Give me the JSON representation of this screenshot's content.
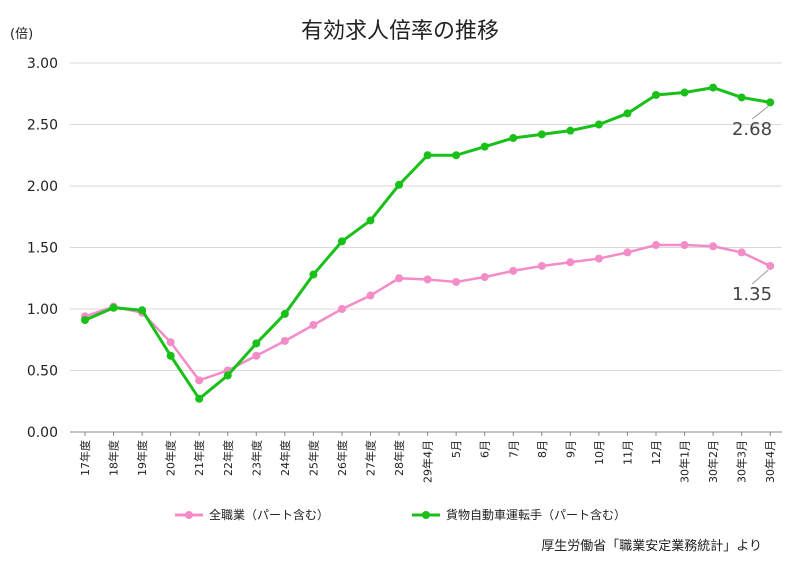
{
  "chart_data": {
    "type": "line",
    "title": "有効求人倍率の推移",
    "unit_label": "(倍)",
    "source": "厚生労働省「職業安定業務統計」より",
    "ylim": [
      0,
      3
    ],
    "yticks": [
      "0.00",
      "0.50",
      "1.00",
      "1.50",
      "2.00",
      "2.50",
      "3.00"
    ],
    "grid": "horizontal",
    "legend_position": "bottom",
    "categories": [
      "17年度",
      "18年度",
      "19年度",
      "20年度",
      "21年度",
      "22年度",
      "23年度",
      "24年度",
      "25年度",
      "26年度",
      "27年度",
      "28年度",
      "29年4月",
      "5月",
      "6月",
      "7月",
      "8月",
      "9月",
      "10月",
      "11月",
      "12月",
      "30年1月",
      "30年2月",
      "30年3月",
      "30年4月"
    ],
    "series": [
      {
        "name": "全職業（パート含む）",
        "color": "#f48cc8",
        "values": [
          0.94,
          1.02,
          0.97,
          0.73,
          0.42,
          0.5,
          0.62,
          0.74,
          0.87,
          1.0,
          1.11,
          1.25,
          1.24,
          1.22,
          1.26,
          1.31,
          1.35,
          1.38,
          1.41,
          1.46,
          1.52,
          1.52,
          1.51,
          1.46,
          1.35
        ],
        "end_label": "1.35"
      },
      {
        "name": "貨物自動車運転手（パート含む）",
        "color": "#18c018",
        "values": [
          0.91,
          1.01,
          0.99,
          0.62,
          0.27,
          0.46,
          0.72,
          0.96,
          1.28,
          1.55,
          1.72,
          2.01,
          2.25,
          2.25,
          2.32,
          2.39,
          2.42,
          2.45,
          2.5,
          2.59,
          2.74,
          2.76,
          2.8,
          2.72,
          2.68
        ],
        "end_label": "2.68"
      }
    ]
  }
}
